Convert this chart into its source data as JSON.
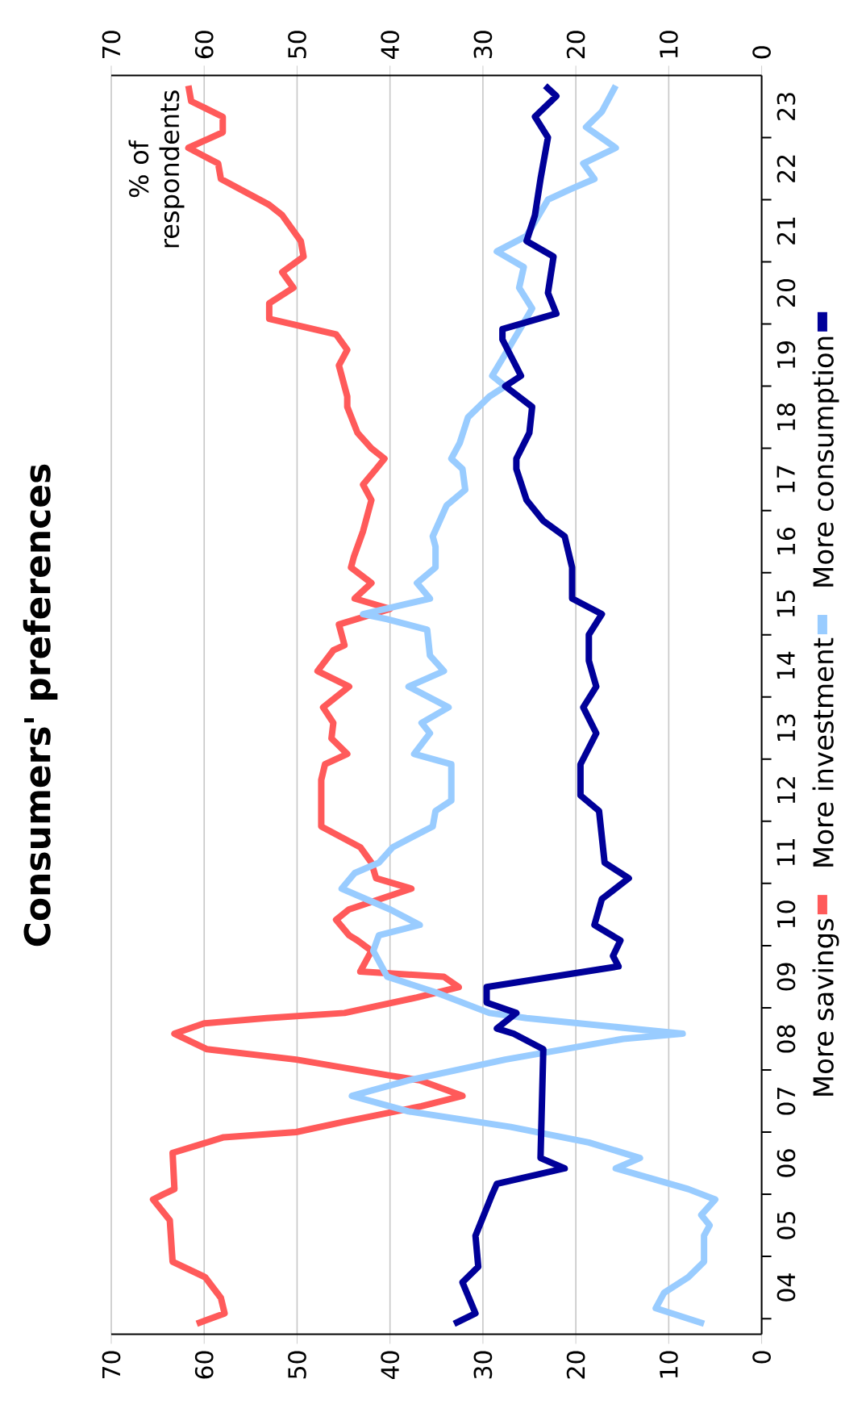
{
  "chart_data": {
    "type": "line",
    "orientation": "horizontal",
    "title": "Consumers' preferences",
    "annotations": [
      "% of respondents"
    ],
    "xlim": [
      70,
      0
    ],
    "xticks": [
      70,
      60,
      50,
      40,
      30,
      20,
      10,
      0
    ],
    "x2lim": [
      70,
      0
    ],
    "x2ticks": [
      70,
      60,
      50,
      40,
      30,
      20,
      10,
      0
    ],
    "ylim": [
      "2003-10",
      "2024-01"
    ],
    "yticks": [
      {
        "value": "2004-01",
        "label": null
      },
      {
        "value": "2005-01",
        "label": null
      },
      {
        "value": "2006-01",
        "label": null
      },
      {
        "value": "2007-01",
        "label": null
      },
      {
        "value": "2008-01",
        "label": null
      },
      {
        "value": "2009-01",
        "label": null
      },
      {
        "value": "2010-01",
        "label": null
      },
      {
        "value": "2011-01",
        "label": null
      },
      {
        "value": "2012-01",
        "label": null
      },
      {
        "value": "2013-01",
        "label": null
      },
      {
        "value": "2014-01",
        "label": null
      },
      {
        "value": "2015-01",
        "label": null
      },
      {
        "value": "2016-01",
        "label": null
      },
      {
        "value": "2017-01",
        "label": null
      },
      {
        "value": "2018-01",
        "label": null
      },
      {
        "value": "2019-01",
        "label": null
      },
      {
        "value": "2020-01",
        "label": null
      },
      {
        "value": "2021-01",
        "label": null
      },
      {
        "value": "2022-01",
        "label": null
      },
      {
        "value": "2023-01",
        "label": null
      },
      {
        "value": "2004-07",
        "label": "04"
      },
      {
        "value": "2005-07",
        "label": "05"
      },
      {
        "value": "2006-07",
        "label": "06"
      },
      {
        "value": "2007-07",
        "label": "07"
      },
      {
        "value": "2008-07",
        "label": "08"
      },
      {
        "value": "2009-07",
        "label": "09"
      },
      {
        "value": "2010-07",
        "label": "10"
      },
      {
        "value": "2011-07",
        "label": "11"
      },
      {
        "value": "2012-07",
        "label": "12"
      },
      {
        "value": "2013-07",
        "label": "13"
      },
      {
        "value": "2014-07",
        "label": "14"
      },
      {
        "value": "2015-07",
        "label": "15"
      },
      {
        "value": "2016-07",
        "label": "16"
      },
      {
        "value": "2017-07",
        "label": "17"
      },
      {
        "value": "2018-07",
        "label": "18"
      },
      {
        "value": "2019-07",
        "label": "19"
      },
      {
        "value": "2020-07",
        "label": "20"
      },
      {
        "value": "2021-07",
        "label": "21"
      },
      {
        "value": "2022-07",
        "label": "22"
      },
      {
        "value": "2023-07",
        "label": "23"
      }
    ],
    "grid": "x",
    "legend": "right",
    "marker": "none",
    "line_style": "solid",
    "series": [
      {
        "name": "More savings",
        "color": "#ff5a5a",
        "x": [
          "2003-12",
          "2004-02",
          "2004-05",
          "2004-09",
          "2004-12",
          "2005-08",
          "2005-12",
          "2006-01",
          "2006-02",
          "2006-09",
          "2006-12",
          "2007-01",
          "2007-03",
          "2007-06",
          "2007-08",
          "2007-11",
          "2007-12",
          "2008-03",
          "2008-05",
          "2008-08",
          "2008-10",
          "2008-11",
          "2008-12",
          "2009-03",
          "2009-05",
          "2009-07",
          "2009-08",
          "2009-12",
          "2010-02",
          "2010-03",
          "2010-06",
          "2010-08",
          "2010-12",
          "2011-02",
          "2011-05",
          "2011-08",
          "2011-12",
          "2012-09",
          "2012-12",
          "2013-02",
          "2013-05",
          "2013-08",
          "2013-11",
          "2014-03",
          "2014-06",
          "2014-10",
          "2014-11",
          "2015-03",
          "2015-06",
          "2015-08",
          "2015-11",
          "2016-02",
          "2016-04",
          "2016-09",
          "2017-03",
          "2017-06",
          "2017-09",
          "2017-11",
          "2018-01",
          "2018-04",
          "2018-09",
          "2018-11",
          "2019-05",
          "2019-08",
          "2019-11",
          "2020-02",
          "2020-05",
          "2020-08",
          "2020-11",
          "2021-02",
          "2021-05",
          "2021-10",
          "2021-12",
          "2022-05",
          "2022-08",
          "2022-11",
          "2023-02",
          "2023-05",
          "2023-08",
          "2023-11"
        ],
        "values": [
          60.8,
          57.8,
          58.2,
          59.9,
          63.4,
          63.7,
          65.5,
          64.4,
          63.2,
          63.4,
          57.9,
          50.1,
          44.9,
          36.6,
          32.2,
          36.8,
          40.3,
          50.1,
          59.7,
          63.2,
          60.0,
          53.3,
          44.9,
          37.1,
          32.6,
          34.2,
          43.2,
          42.0,
          43.5,
          44.4,
          45.8,
          44.4,
          37.7,
          41.5,
          42.0,
          43.2,
          47.4,
          47.4,
          47.0,
          44.6,
          46.3,
          46.1,
          47.2,
          44.4,
          47.8,
          46.1,
          44.9,
          45.5,
          40.0,
          43.8,
          42.0,
          44.2,
          43.9,
          42.9,
          42.0,
          42.9,
          41.5,
          40.6,
          42.0,
          43.5,
          44.6,
          44.6,
          45.5,
          44.6,
          45.8,
          53.0,
          53.0,
          50.4,
          51.6,
          49.3,
          49.6,
          51.6,
          53.0,
          58.2,
          58.5,
          61.7,
          58.0,
          58.0,
          61.4,
          61.7
        ]
      },
      {
        "name": "More investment",
        "color": "#99ccff",
        "x": [
          "2003-12",
          "2004-03",
          "2004-06",
          "2004-09",
          "2004-12",
          "2005-05",
          "2005-07",
          "2005-09",
          "2005-12",
          "2006-02",
          "2006-06",
          "2006-08",
          "2006-11",
          "2007-02",
          "2007-05",
          "2007-08",
          "2007-11",
          "2008-03",
          "2008-07",
          "2008-08",
          "2008-11",
          "2008-12",
          "2009-04",
          "2009-07",
          "2009-12",
          "2010-03",
          "2010-05",
          "2010-08",
          "2010-12",
          "2011-03",
          "2011-05",
          "2011-08",
          "2011-12",
          "2012-03",
          "2012-05",
          "2012-12",
          "2013-02",
          "2013-06",
          "2013-08",
          "2013-11",
          "2014-03",
          "2014-06",
          "2014-09",
          "2015-02",
          "2015-04",
          "2015-05",
          "2015-08",
          "2015-11",
          "2016-02",
          "2016-06",
          "2016-08",
          "2017-02",
          "2017-05",
          "2017-09",
          "2017-11",
          "2018-02",
          "2018-07",
          "2018-11",
          "2019-01",
          "2019-03",
          "2019-09",
          "2020-04",
          "2020-08",
          "2020-12",
          "2021-03",
          "2021-06",
          "2022-01",
          "2022-03",
          "2022-05",
          "2022-08",
          "2022-11",
          "2023-03",
          "2023-06",
          "2023-11"
        ],
        "values": [
          6.2,
          11.4,
          10.5,
          7.9,
          6.2,
          6.2,
          5.6,
          6.5,
          5.0,
          7.9,
          15.7,
          13.1,
          18.6,
          27.0,
          38.0,
          44.1,
          38.0,
          27.6,
          14.9,
          8.5,
          25.3,
          29.3,
          35.1,
          40.3,
          41.8,
          41.2,
          36.8,
          40.0,
          45.2,
          43.8,
          41.2,
          39.7,
          35.4,
          35.1,
          33.4,
          33.4,
          37.4,
          35.7,
          36.6,
          33.7,
          38.0,
          34.2,
          35.7,
          36.0,
          40.3,
          42.9,
          35.7,
          37.1,
          35.1,
          35.1,
          35.4,
          33.9,
          31.9,
          32.2,
          33.4,
          32.5,
          31.6,
          29.3,
          27.6,
          29.0,
          27.0,
          24.7,
          26.1,
          25.6,
          28.5,
          25.3,
          23.0,
          20.6,
          18.0,
          19.2,
          15.7,
          18.9,
          17.2,
          15.7
        ]
      },
      {
        "name": "More consumption",
        "color": "#000099",
        "x": [
          "2003-12",
          "2004-02",
          "2004-08",
          "2004-11",
          "2005-05",
          "2006-01",
          "2006-03",
          "2006-06",
          "2006-08",
          "2008-05",
          "2008-08",
          "2008-09",
          "2008-12",
          "2009-02",
          "2009-05",
          "2009-09",
          "2009-11",
          "2010-02",
          "2010-05",
          "2010-10",
          "2011-02",
          "2011-05",
          "2012-03",
          "2012-06",
          "2012-12",
          "2013-06",
          "2013-11",
          "2014-03",
          "2014-08",
          "2015-01",
          "2015-05",
          "2015-08",
          "2016-02",
          "2016-08",
          "2016-11",
          "2017-03",
          "2017-09",
          "2017-11",
          "2018-04",
          "2018-09",
          "2019-01",
          "2019-03",
          "2019-10",
          "2019-12",
          "2020-03",
          "2020-07",
          "2021-02",
          "2021-05",
          "2021-10",
          "2022-05",
          "2023-01",
          "2023-05",
          "2023-09",
          "2023-11"
        ],
        "values": [
          33.1,
          30.8,
          32.2,
          30.5,
          30.8,
          29.0,
          28.5,
          21.2,
          23.8,
          23.5,
          26.7,
          28.5,
          26.4,
          29.6,
          29.6,
          15.4,
          16.0,
          15.2,
          18.0,
          17.2,
          14.3,
          16.9,
          17.5,
          19.5,
          19.5,
          17.8,
          19.2,
          17.8,
          18.6,
          18.6,
          17.2,
          20.4,
          20.4,
          21.2,
          23.5,
          25.3,
          26.4,
          26.4,
          25.0,
          24.7,
          27.6,
          25.9,
          27.9,
          27.9,
          22.1,
          23.0,
          22.4,
          25.3,
          24.4,
          23.8,
          23.0,
          24.4,
          22.1,
          23.3
        ]
      }
    ]
  }
}
